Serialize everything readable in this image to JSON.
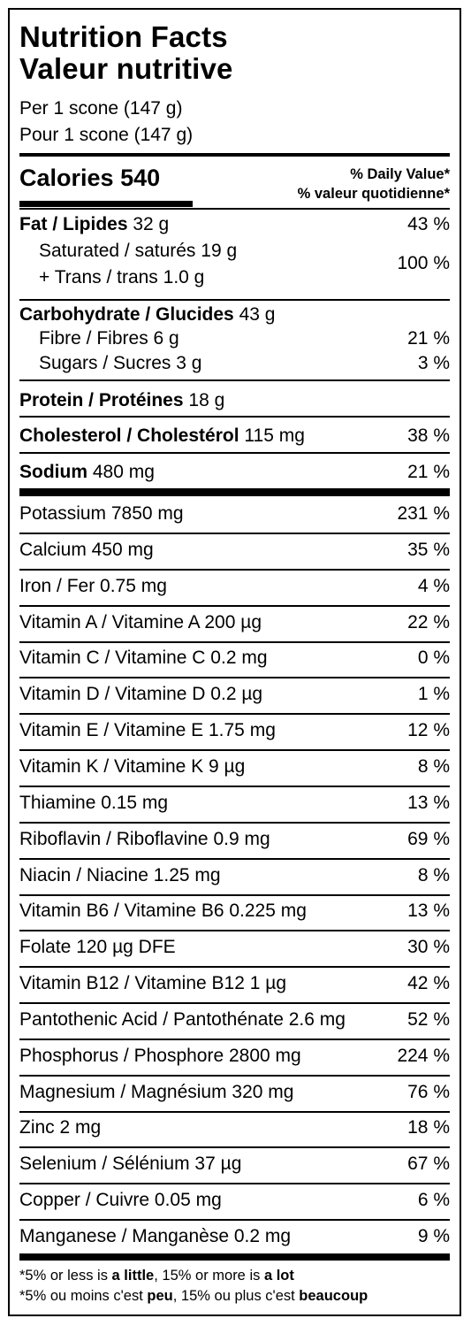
{
  "title": {
    "en": "Nutrition Facts",
    "fr": "Valeur nutritive"
  },
  "serving": {
    "en": "Per 1 scone (147 g)",
    "fr": "Pour 1 scone (147 g)"
  },
  "calories": {
    "label": "Calories",
    "value": "540"
  },
  "daily_value_header": {
    "en": "% Daily Value*",
    "fr": "% valeur quotidienne*"
  },
  "fat": {
    "label": "Fat / Lipides",
    "amount": "32 g",
    "dv": "43 %"
  },
  "saturated": {
    "label": "Saturated / saturés 19 g"
  },
  "trans": {
    "label": "+ Trans / trans 1.0 g",
    "dv": "100 %"
  },
  "carbohydrate": {
    "label": "Carbohydrate / Glucides",
    "amount": "43 g"
  },
  "fibre": {
    "label": "Fibre / Fibres 6 g",
    "dv": "21 %"
  },
  "sugars": {
    "label": "Sugars / Sucres 3 g",
    "dv": "3 %"
  },
  "protein": {
    "label": "Protein / Protéines",
    "amount": "18 g"
  },
  "cholesterol": {
    "label": "Cholesterol / Cholestérol",
    "amount": "115 mg",
    "dv": "38 %"
  },
  "sodium": {
    "label": "Sodium",
    "amount": "480 mg",
    "dv": "21 %"
  },
  "micronutrients": [
    {
      "label": "Potassium 7850 mg",
      "dv": "231 %"
    },
    {
      "label": "Calcium 450 mg",
      "dv": "35 %"
    },
    {
      "label": "Iron / Fer 0.75 mg",
      "dv": "4 %"
    },
    {
      "label": "Vitamin A / Vitamine A 200 µg",
      "dv": "22 %"
    },
    {
      "label": "Vitamin C / Vitamine C 0.2 mg",
      "dv": "0 %"
    },
    {
      "label": "Vitamin D / Vitamine D 0.2 µg",
      "dv": "1 %"
    },
    {
      "label": "Vitamin E / Vitamine E 1.75 mg",
      "dv": "12 %"
    },
    {
      "label": "Vitamin K / Vitamine K 9 µg",
      "dv": "8 %"
    },
    {
      "label": "Thiamine 0.15 mg",
      "dv": "13 %"
    },
    {
      "label": "Riboflavin / Riboflavine 0.9 mg",
      "dv": "69 %"
    },
    {
      "label": "Niacin / Niacine 1.25 mg",
      "dv": "8 %"
    },
    {
      "label": "Vitamin B6 / Vitamine B6 0.225 mg",
      "dv": "13 %"
    },
    {
      "label": "Folate 120 µg DFE",
      "dv": "30 %"
    },
    {
      "label": "Vitamin B12 / Vitamine B12 1 µg",
      "dv": "42 %"
    },
    {
      "label": "Pantothenic Acid / Pantothénate 2.6 mg",
      "dv": "52 %"
    },
    {
      "label": "Phosphorus / Phosphore 2800 mg",
      "dv": "224 %"
    },
    {
      "label": "Magnesium / Magnésium 320 mg",
      "dv": "76 %"
    },
    {
      "label": "Zinc 2 mg",
      "dv": "18 %"
    },
    {
      "label": "Selenium / Sélénium 37 µg",
      "dv": "67 %"
    },
    {
      "label": "Copper / Cuivre 0.05 mg",
      "dv": "6 %"
    },
    {
      "label": "Manganese / Manganèse 0.2 mg",
      "dv": "9 %"
    }
  ],
  "footnote": {
    "en": {
      "pre": "*5% or less is ",
      "little": "a little",
      "mid": ", 15% or more is ",
      "lot": "a lot"
    },
    "fr": {
      "pre": "*5% ou moins c'est ",
      "little": "peu",
      "mid": ", 15% ou plus c'est ",
      "lot": "beaucoup"
    }
  }
}
